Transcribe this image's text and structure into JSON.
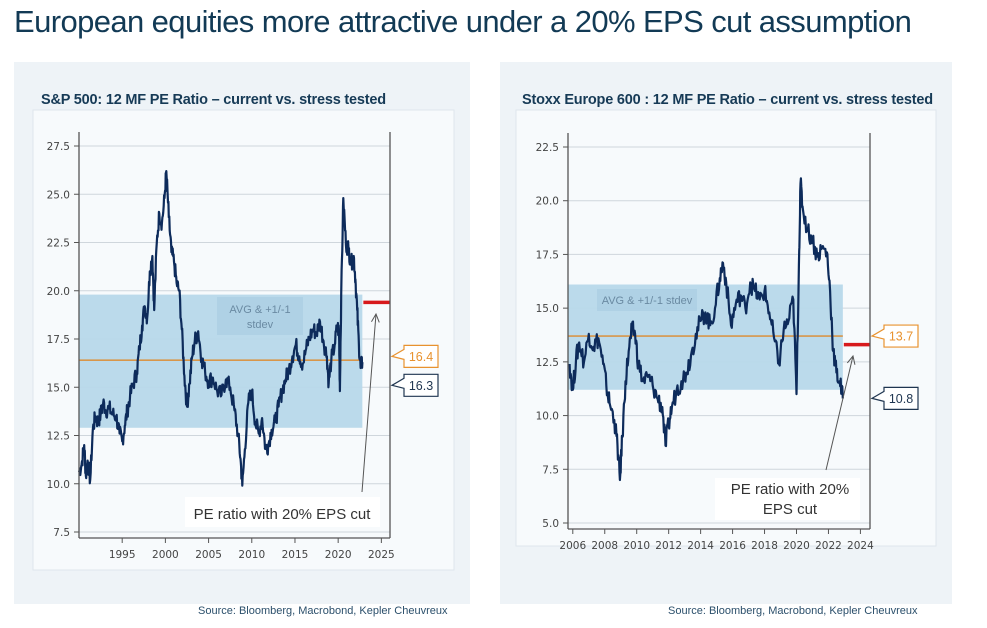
{
  "page": {
    "title": "European equities more attractive under a 20% EPS cut assumption"
  },
  "colors": {
    "title": "#123a55",
    "panel_bg": "#eef3f7",
    "plot_bg": "#f7fafc",
    "series_line": "#0d2b5b",
    "band_fill": "#b7d8ea",
    "band_label_bg": "#a9cde2",
    "avg_line": "#d8964a",
    "stress_line": "#d7191c",
    "avg_callout": "#e8922f",
    "current_callout": "#1f3550",
    "gridline": "#cfd6dc",
    "axis": "#555555"
  },
  "chart_data": [
    {
      "id": "sp500",
      "type": "line",
      "title": "S&P 500: 12 MF PE Ratio – current vs. stress tested",
      "source": "Source: Bloomberg, Macrobond, Kepler Cheuvreux",
      "xlabel": "",
      "ylabel": "",
      "xlim": [
        1990,
        2026
      ],
      "ylim": [
        7.5,
        27.5
      ],
      "grid": true,
      "x_ticks": [
        1995,
        2000,
        2005,
        2010,
        2015,
        2020,
        2025
      ],
      "x_tick_labels": [
        "1995",
        "2000",
        "2005",
        "2010",
        "2015",
        "2020",
        "2025"
      ],
      "y_ticks": [
        7.5,
        10.0,
        12.5,
        15.0,
        17.5,
        20.0,
        22.5,
        25.0,
        27.5
      ],
      "y_tick_labels": [
        "7.5",
        "10.0",
        "12.5",
        "15.0",
        "17.5",
        "20.0",
        "22.5",
        "25.0",
        "27.5"
      ],
      "series": [
        {
          "name": "12M forward PE",
          "x": [
            1990.0,
            1990.3,
            1990.6,
            1990.8,
            1991.0,
            1991.3,
            1991.6,
            1991.9,
            1992.2,
            1992.5,
            1992.8,
            1993.1,
            1993.5,
            1993.9,
            1994.3,
            1994.7,
            1995.0,
            1995.3,
            1995.6,
            1995.9,
            1996.3,
            1996.7,
            1997.0,
            1997.3,
            1997.6,
            1997.9,
            1998.2,
            1998.5,
            1998.7,
            1999.0,
            1999.3,
            1999.6,
            1999.9,
            2000.1,
            2000.4,
            2000.7,
            2001.0,
            2001.3,
            2001.6,
            2001.9,
            2002.2,
            2002.5,
            2002.8,
            2003.1,
            2003.4,
            2003.8,
            2004.2,
            2004.6,
            2005.0,
            2005.5,
            2006.0,
            2006.5,
            2007.0,
            2007.5,
            2008.0,
            2008.4,
            2008.7,
            2008.9,
            2009.2,
            2009.6,
            2010.0,
            2010.4,
            2010.8,
            2011.2,
            2011.6,
            2011.9,
            2012.3,
            2012.7,
            2013.1,
            2013.5,
            2013.9,
            2014.3,
            2014.7,
            2015.1,
            2015.5,
            2015.9,
            2016.3,
            2016.7,
            2017.1,
            2017.5,
            2017.9,
            2018.3,
            2018.7,
            2018.9,
            2019.2,
            2019.6,
            2019.9,
            2020.1,
            2020.2,
            2020.35,
            2020.6,
            2020.9,
            2021.2,
            2021.5,
            2021.8,
            2022.0,
            2022.2,
            2022.4,
            2022.6,
            2022.8
          ],
          "y": [
            10.6,
            11.0,
            12.0,
            10.4,
            11.2,
            10.2,
            12.8,
            13.5,
            13.2,
            13.6,
            14.2,
            13.8,
            13.9,
            13.6,
            13.5,
            12.6,
            12.2,
            13.0,
            13.8,
            14.5,
            15.2,
            15.8,
            17.0,
            18.2,
            19.2,
            18.6,
            21.0,
            21.8,
            19.0,
            22.5,
            24.0,
            23.5,
            24.8,
            26.2,
            23.8,
            22.0,
            21.5,
            20.4,
            20.0,
            18.0,
            15.6,
            14.0,
            15.2,
            16.6,
            17.4,
            17.9,
            16.5,
            15.8,
            15.3,
            15.5,
            14.8,
            14.6,
            15.4,
            15.0,
            13.8,
            12.6,
            11.3,
            9.9,
            11.8,
            14.2,
            14.8,
            13.2,
            12.6,
            13.4,
            11.8,
            12.0,
            12.8,
            13.2,
            14.0,
            14.8,
            15.4,
            15.9,
            16.6,
            17.2,
            16.6,
            16.2,
            17.0,
            17.6,
            18.0,
            17.8,
            18.4,
            17.4,
            16.6,
            15.2,
            16.4,
            17.2,
            18.2,
            17.8,
            14.8,
            19.8,
            24.8,
            22.4,
            22.2,
            21.4,
            21.8,
            20.6,
            19.0,
            17.2,
            16.0,
            16.3
          ]
        }
      ],
      "band": {
        "label": "AVG & +1/-1 stdev",
        "upper": 19.8,
        "lower": 12.9,
        "x_end": 2022.8
      },
      "average": 16.4,
      "stress_tested_pe": 19.4,
      "callouts": [
        {
          "name": "average",
          "value": "16.4"
        },
        {
          "name": "current",
          "value": "16.3"
        }
      ],
      "annotation": {
        "text_lines": [
          "PE ratio with 20% EPS cut"
        ]
      }
    },
    {
      "id": "stoxx600",
      "type": "line",
      "title": "Stoxx Europe 600 : 12 MF PE Ratio – current vs. stress tested",
      "source": "Source: Bloomberg, Macrobond, Kepler Cheuvreux",
      "xlabel": "",
      "ylabel": "",
      "xlim": [
        2005.7,
        2024.6
      ],
      "ylim": [
        5.0,
        22.5
      ],
      "grid": true,
      "x_ticks": [
        2006,
        2008,
        2010,
        2012,
        2014,
        2016,
        2018,
        2020,
        2022,
        2024
      ],
      "x_tick_labels": [
        "2006",
        "2008",
        "2010",
        "2012",
        "2014",
        "2016",
        "2018",
        "2020",
        "2022",
        "2024"
      ],
      "y_ticks": [
        5.0,
        7.5,
        10.0,
        12.5,
        15.0,
        17.5,
        20.0,
        22.5
      ],
      "y_tick_labels": [
        "5.0",
        "7.5",
        "10.0",
        "12.5",
        "15.0",
        "17.5",
        "20.0",
        "22.5"
      ],
      "series": [
        {
          "name": "12M forward PE",
          "x": [
            2005.8,
            2006.0,
            2006.2,
            2006.4,
            2006.7,
            2007.0,
            2007.3,
            2007.6,
            2007.9,
            2008.1,
            2008.3,
            2008.6,
            2008.8,
            2008.95,
            2009.1,
            2009.3,
            2009.5,
            2009.7,
            2009.9,
            2010.1,
            2010.4,
            2010.7,
            2011.0,
            2011.3,
            2011.6,
            2011.8,
            2012.0,
            2012.2,
            2012.5,
            2012.8,
            2013.1,
            2013.4,
            2013.7,
            2014.0,
            2014.3,
            2014.6,
            2014.9,
            2015.2,
            2015.4,
            2015.6,
            2015.9,
            2016.2,
            2016.5,
            2016.8,
            2017.1,
            2017.4,
            2017.7,
            2018.0,
            2018.3,
            2018.6,
            2018.9,
            2019.2,
            2019.5,
            2019.8,
            2020.0,
            2020.15,
            2020.25,
            2020.4,
            2020.7,
            2021.0,
            2021.3,
            2021.6,
            2021.9,
            2022.1,
            2022.3,
            2022.5,
            2022.7,
            2022.9
          ],
          "y": [
            12.4,
            11.2,
            12.6,
            13.4,
            12.5,
            13.8,
            13.2,
            13.6,
            12.4,
            11.4,
            10.6,
            9.8,
            8.6,
            7.0,
            9.0,
            11.6,
            13.0,
            14.0,
            13.8,
            12.4,
            11.6,
            11.8,
            11.4,
            10.8,
            10.4,
            8.6,
            9.6,
            10.4,
            11.2,
            11.6,
            12.0,
            12.8,
            13.8,
            14.4,
            14.8,
            14.2,
            15.0,
            16.4,
            17.1,
            16.2,
            14.2,
            15.2,
            15.6,
            15.0,
            16.2,
            15.8,
            15.4,
            15.8,
            14.8,
            13.6,
            12.4,
            14.0,
            14.4,
            15.4,
            11.0,
            17.0,
            20.8,
            19.6,
            18.6,
            18.2,
            17.4,
            17.8,
            17.6,
            15.8,
            13.0,
            12.0,
            11.6,
            10.8
          ]
        }
      ],
      "band": {
        "label": "AVG & +1/-1 stdev",
        "upper": 16.1,
        "lower": 11.2,
        "x_end": 2022.9
      },
      "average": 13.7,
      "stress_tested_pe": 13.3,
      "callouts": [
        {
          "name": "average",
          "value": "13.7"
        },
        {
          "name": "current",
          "value": "10.8"
        }
      ],
      "annotation": {
        "text_lines": [
          "PE ratio with 20%",
          "EPS cut"
        ]
      }
    }
  ]
}
